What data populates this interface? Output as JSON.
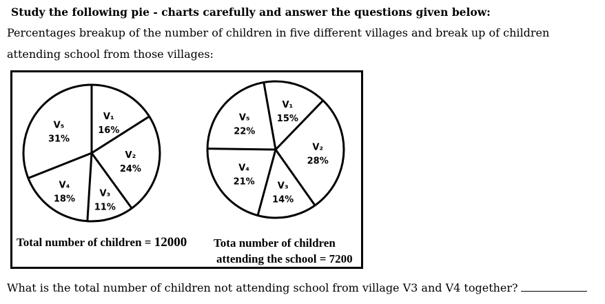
{
  "instruction": "Study the following pie - charts carefully and answer the questions given below:",
  "description_line1": "Percentages breakup of the number of children in five different villages and break up of children",
  "description_line2": "attending school from those villages:",
  "question": "What is the total number of children not attending school from village V3 and V4 together?",
  "chart_data": [
    {
      "type": "pie",
      "title": "",
      "categories": [
        "V1",
        "V2",
        "V3",
        "V4",
        "V5"
      ],
      "values": [
        16,
        24,
        11,
        18,
        31
      ],
      "labels": [
        "16%",
        "24%",
        "11%",
        "18%",
        "31%"
      ],
      "display_names": [
        "V₁",
        "V₂",
        "V₃",
        "V₄",
        "V₅"
      ],
      "caption_text": "Total number of children = ",
      "caption_value": "12000"
    },
    {
      "type": "pie",
      "title": "",
      "categories": [
        "V1",
        "V2",
        "V3",
        "V4",
        "V5"
      ],
      "values": [
        15,
        28,
        14,
        21,
        22
      ],
      "labels": [
        "15%",
        "28%",
        "14%",
        "21%",
        "22%"
      ],
      "display_names": [
        "V₁",
        "V₂",
        "V₃",
        "V₄",
        "V₅"
      ],
      "caption_line1": "Tota number of children",
      "caption_line2": "attending the school = 7200"
    }
  ]
}
